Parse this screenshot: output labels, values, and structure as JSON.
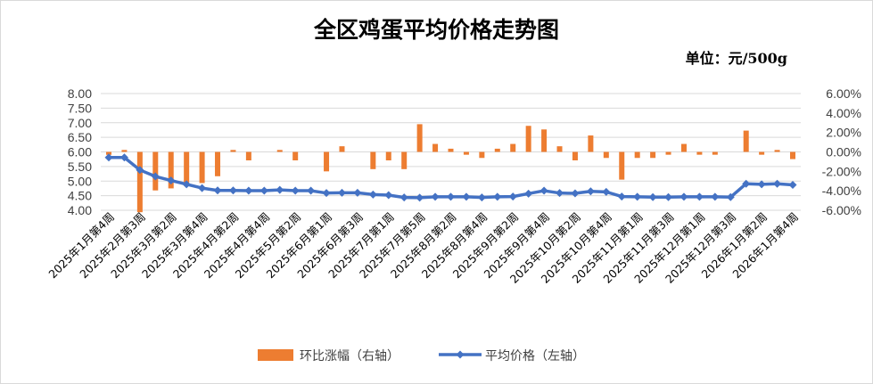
{
  "chart_data": {
    "type": "bar+line",
    "title": "全区鸡蛋平均价格走势图",
    "unit": "单位：元/500g",
    "tick_labels": [
      "2025年1月第4周",
      "2025年2月第3周",
      "2025年3月第2周",
      "2025年3月第4周",
      "2025年4月第2周",
      "2025年4月第4周",
      "2025年5月第2周",
      "2025年6月第1周",
      "2025年6月第3周",
      "2025年7月第1周",
      "2025年7月第5周",
      "2025年8月第2周",
      "2025年8月第4周",
      "2025年9月第2周",
      "2025年9月第4周",
      "2025年10月第2周",
      "2025年10月第4周",
      "2025年11月第1周",
      "2025年11月第3周",
      "2025年12月第1周",
      "2025年12月第3周",
      "2026年1月第2周",
      "2026年1月第4周"
    ],
    "left_axis": {
      "ylim": [
        4.0,
        8.0
      ],
      "ticks": [
        "4.00",
        "4.50",
        "5.00",
        "5.50",
        "6.00",
        "6.50",
        "7.00",
        "7.50",
        "8.00"
      ]
    },
    "right_axis": {
      "ylim": [
        -6,
        6
      ],
      "ticks": [
        "-6.00%",
        "-4.00%",
        "-2.00%",
        "0.00%",
        "2.00%",
        "4.00%",
        "6.00%"
      ]
    },
    "grid": true,
    "legend_position": "bottom",
    "series": [
      {
        "name": "环比涨幅（右轴）",
        "type": "bar",
        "axis": "right",
        "color": "#ED7D31",
        "values": [
          -0.3,
          0.2,
          -6.2,
          -3.96,
          -3.75,
          -3.5,
          -3.2,
          -2.5,
          0.2,
          -0.87,
          0,
          0.2,
          -0.87,
          0,
          -2.0,
          0.58,
          0,
          -1.77,
          -0.87,
          -1.77,
          2.85,
          0.82,
          0.33,
          -0.29,
          -0.62,
          0.33,
          0.82,
          2.68,
          2.31,
          0.58,
          -0.87,
          1.69,
          -0.62,
          -2.85,
          -0.62,
          -0.62,
          -0.29,
          0.82,
          -0.29,
          -0.29,
          0,
          2.19,
          -0.29,
          0.2,
          -0.74
        ]
      },
      {
        "name": "平均价格（左轴）",
        "type": "line",
        "axis": "left",
        "color": "#4472C4",
        "values": [
          5.81,
          5.81,
          5.38,
          5.16,
          5.02,
          4.89,
          4.76,
          4.68,
          4.68,
          4.67,
          4.67,
          4.7,
          4.67,
          4.67,
          4.59,
          4.6,
          4.6,
          4.54,
          4.52,
          4.44,
          4.43,
          4.46,
          4.46,
          4.46,
          4.44,
          4.46,
          4.47,
          4.57,
          4.67,
          4.59,
          4.58,
          4.65,
          4.63,
          4.47,
          4.46,
          4.45,
          4.45,
          4.46,
          4.46,
          4.46,
          4.45,
          4.91,
          4.89,
          4.91,
          4.87
        ]
      }
    ]
  }
}
